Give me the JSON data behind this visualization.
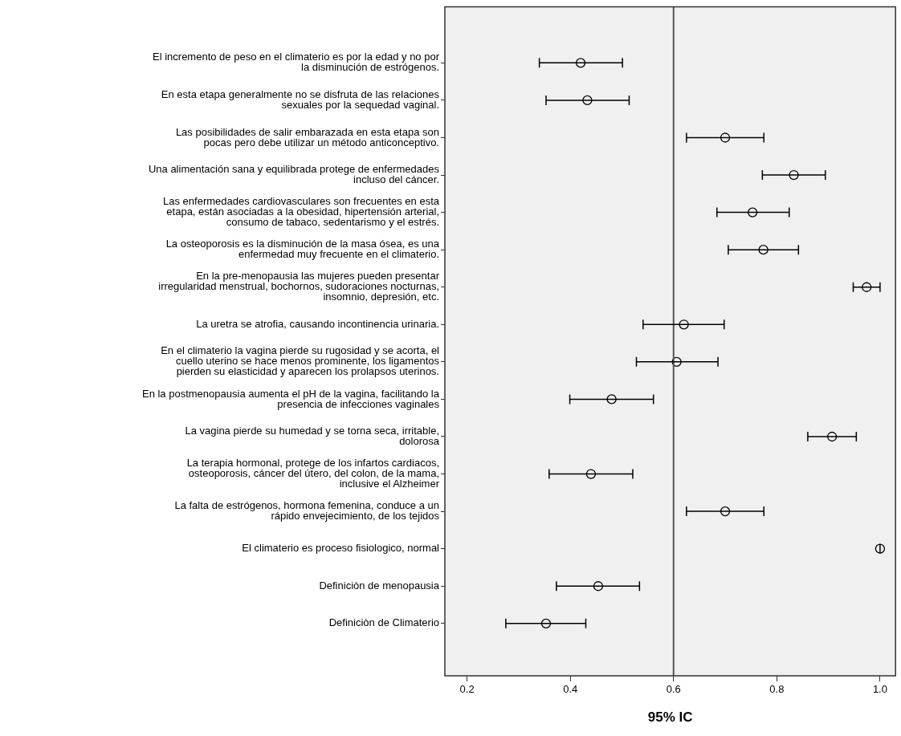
{
  "chart_data": {
    "type": "scatter",
    "orientation": "horizontal",
    "xlabel": "95% IC",
    "categories": [
      "El incremento de peso en el climaterio es por la edad y no por\nla disminución de estrógenos.",
      "En esta etapa generalmente no se disfruta de las relaciones\nsexuales por la sequedad vaginal.",
      "Las posibilidades de salir embarazada en esta etapa son\npocas pero debe utilizar un método anticonceptivo.",
      "Una alimentación sana y equilibrada protege de enfermedades\nincluso del cáncer.",
      "Las enfermedades cardiovasculares son frecuentes en esta\netapa, están asociadas a la obesidad, hipertensión arterial,\nconsumo de tabaco, sedentarismo y el estrés.",
      "La osteoporosis es la disminución de la masa ósea, es una\nenfermedad muy frecuente en el climaterio.",
      "En la pre-menopausia las mujeres pueden presentar\nirregularidad menstrual, bochornos, sudoraciones nocturnas,\ninsomnio, depresión, etc.",
      "La uretra se atrofia, causando incontinencia urinaria.",
      "En el climaterio la vagina pierde su rugosidad y se acorta, el\ncuello uterino se hace menos prominente, los ligamentos\npierden su elasticidad y aparecen los prolapsos uterinos.",
      "En la postmenopausia aumenta el pH de la vagina, facilitando la\npresencia de infecciones vaginales",
      "La vagina pierde su humedad y se torna seca, irritable,\ndolorosa",
      "La terapia hormonal, protege de los infartos cardiacos,\nosteoporosis, cáncer del útero, del colon, de la mama,\ninclusive el Alzheimer",
      "La falta de estrógenos, hormona femenina, conduce a un\nrápido envejecimiento, de los tejidos",
      "El climaterio es proceso fisiologico, normal",
      "Definiciòn de menopausia",
      "Definiciòn de Climaterio"
    ],
    "values": [
      0.42,
      0.433,
      0.7,
      0.833,
      0.753,
      0.774,
      0.974,
      0.62,
      0.606,
      0.48,
      0.907,
      0.44,
      0.7,
      1.0,
      0.454,
      0.353
    ],
    "errors": [
      [
        0.34,
        0.501
      ],
      [
        0.353,
        0.514
      ],
      [
        0.625,
        0.775
      ],
      [
        0.772,
        0.894
      ],
      [
        0.684,
        0.824
      ],
      [
        0.706,
        0.842
      ],
      [
        0.948,
        1.0
      ],
      [
        0.541,
        0.698
      ],
      [
        0.528,
        0.686
      ],
      [
        0.399,
        0.561
      ],
      [
        0.86,
        0.954
      ],
      [
        0.359,
        0.521
      ],
      [
        0.625,
        0.775
      ],
      [
        1.0,
        1.0
      ],
      [
        0.373,
        0.534
      ],
      [
        0.275,
        0.43
      ]
    ],
    "color": "#000000",
    "marker": "circle",
    "xlim": [
      0.157,
      1.03
    ],
    "xticks": [
      0.2,
      0.4,
      0.6,
      0.8,
      {
        "value": 1.0,
        "label": "1.0"
      }
    ],
    "ref_lines": [
      {
        "axis": "x",
        "value": 0.6,
        "color": "#555555"
      }
    ],
    "grid": false,
    "legend": false
  }
}
